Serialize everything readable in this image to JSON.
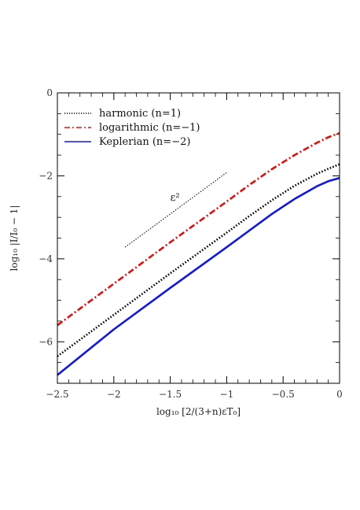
{
  "chart_data": {
    "type": "line",
    "xlabel": "log₁₀ [2/(3+n)εT₀]",
    "ylabel": "log₁₀ |I/I₀ − 1|",
    "xlim": [
      -2.5,
      0
    ],
    "ylim": [
      -7,
      0
    ],
    "x_ticks": [
      -2.5,
      -2,
      -1.5,
      -1,
      -0.5,
      0
    ],
    "x_tick_labels": [
      "−2.5",
      "−2",
      "−1.5",
      "−1",
      "−0.5",
      "0"
    ],
    "y_ticks": [
      -6,
      -4,
      -2,
      0
    ],
    "y_tick_labels": [
      "−6",
      "−4",
      "−2",
      "0"
    ],
    "grid": false,
    "legend_position": "top-left",
    "series": [
      {
        "name": "harmonic (n=1)",
        "color": "#000000",
        "style": "dotted",
        "x": [
          -2.5,
          -2.0,
          -1.5,
          -1.0,
          -0.8,
          -0.6,
          -0.4,
          -0.2,
          -0.1,
          0.0
        ],
        "y": [
          -6.35,
          -5.35,
          -4.35,
          -3.37,
          -2.97,
          -2.59,
          -2.24,
          -1.95,
          -1.83,
          -1.72
        ]
      },
      {
        "name": "logarithmic (n=−1)",
        "color": "#e01010",
        "style": "dashdot",
        "x": [
          -2.5,
          -2.0,
          -1.5,
          -1.0,
          -0.8,
          -0.6,
          -0.4,
          -0.2,
          -0.1,
          0.0
        ],
        "y": [
          -5.6,
          -4.6,
          -3.6,
          -2.62,
          -2.22,
          -1.84,
          -1.5,
          -1.2,
          -1.07,
          -0.97
        ]
      },
      {
        "name": "Keplerian (n=−2)",
        "color": "#1018e0",
        "style": "solid",
        "x": [
          -2.5,
          -2.0,
          -1.5,
          -1.0,
          -0.8,
          -0.6,
          -0.4,
          -0.2,
          -0.1,
          0.0
        ],
        "y": [
          -6.8,
          -5.7,
          -4.7,
          -3.72,
          -3.32,
          -2.92,
          -2.56,
          -2.25,
          -2.13,
          -2.05
        ]
      }
    ],
    "reference_line": {
      "label": "ε²",
      "x": [
        -1.9,
        -1.0
      ],
      "y": [
        -3.72,
        -1.92
      ],
      "color": "#000000",
      "style": "dotted"
    }
  }
}
